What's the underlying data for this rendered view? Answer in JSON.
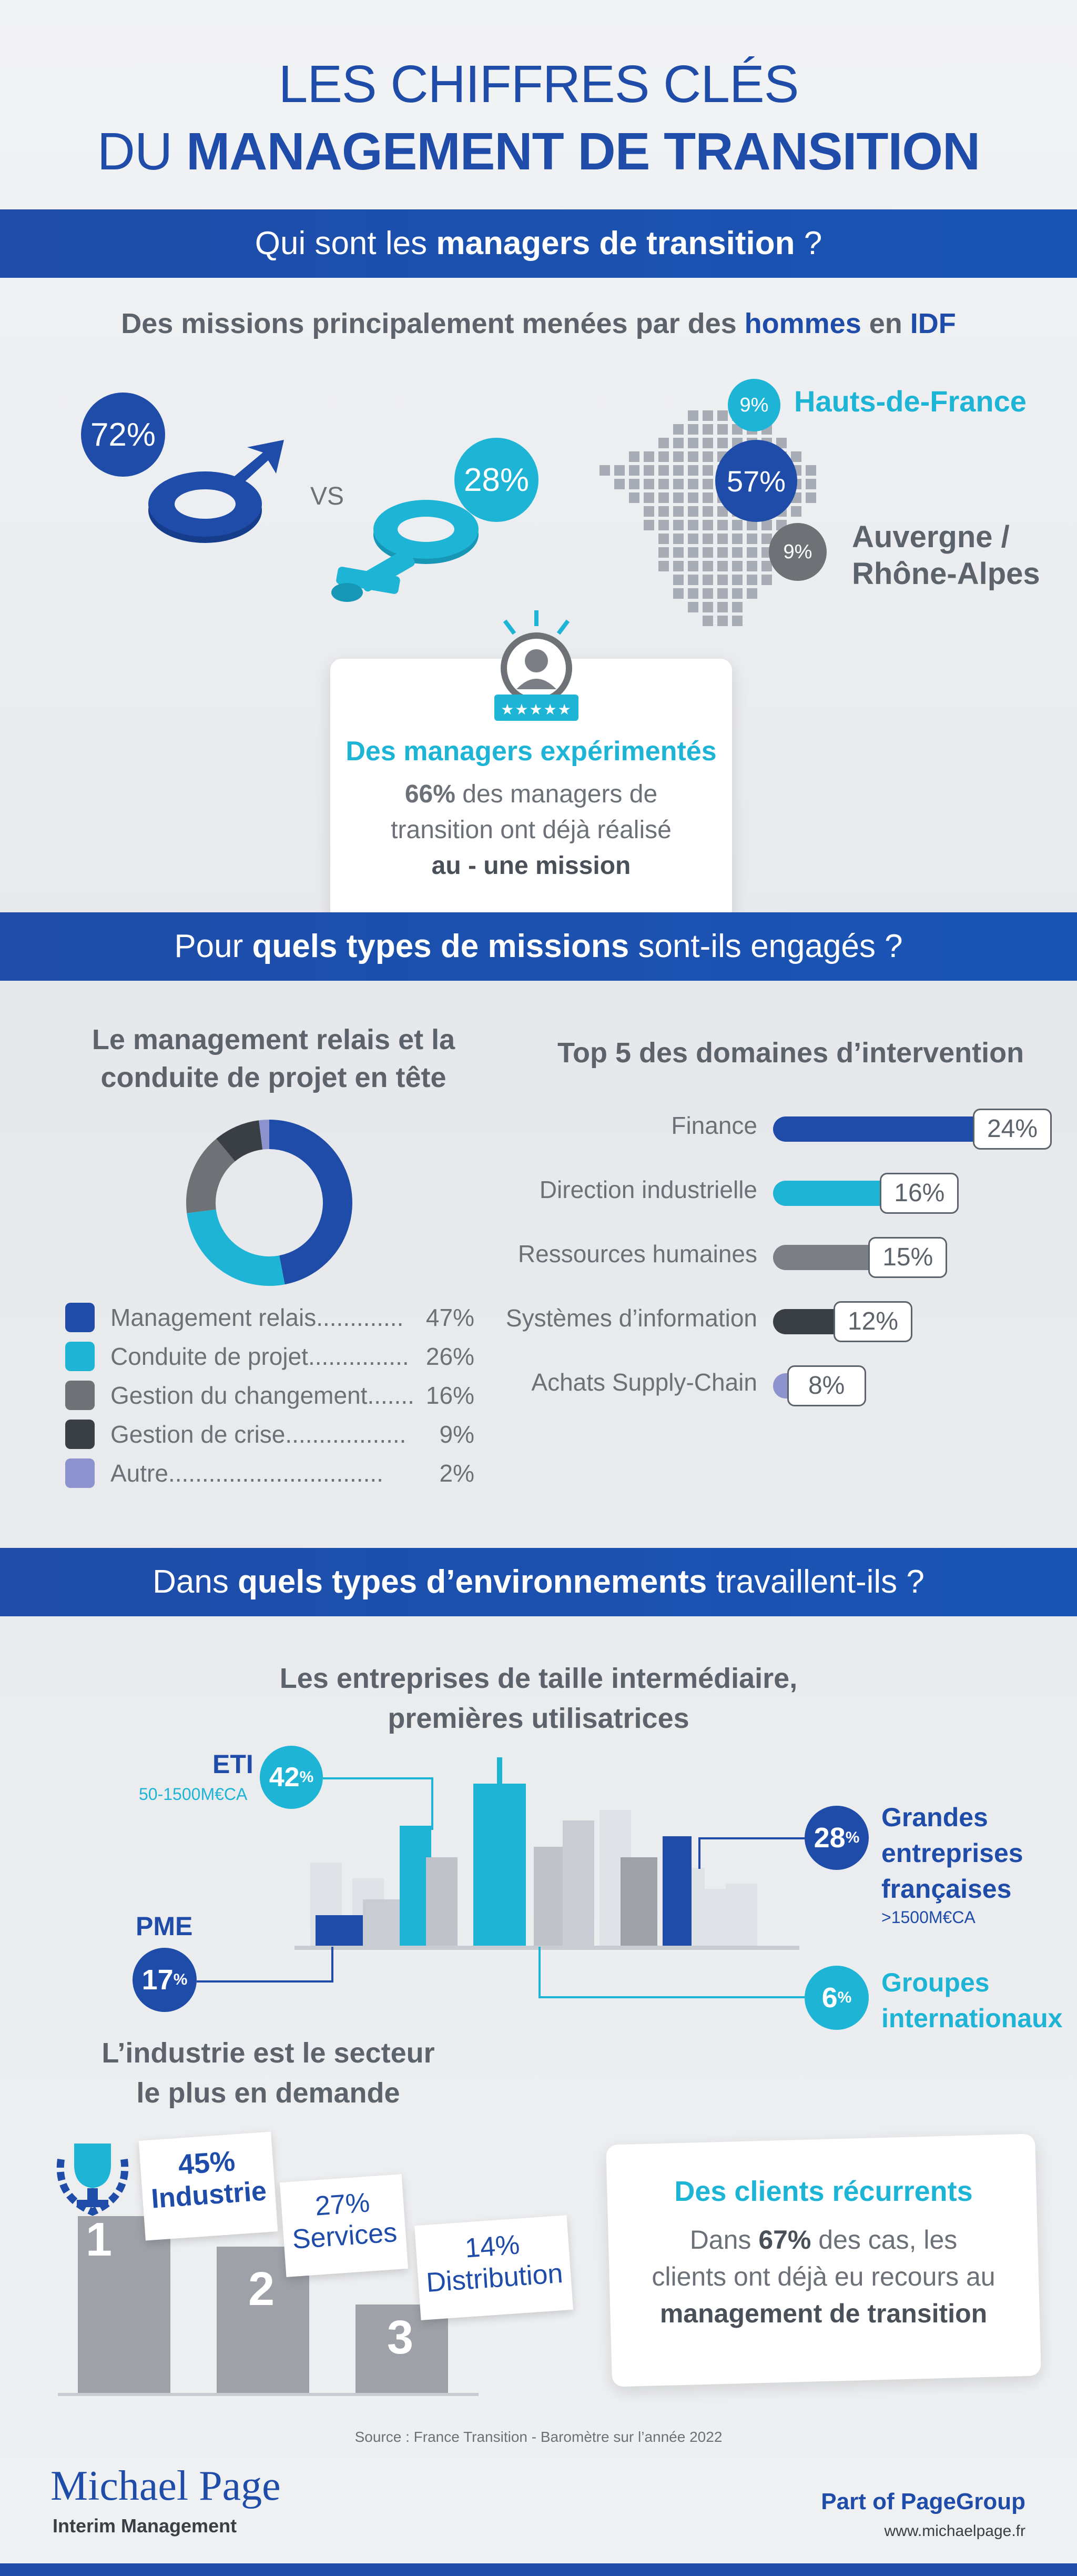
{
  "title": {
    "line1": "LES CHIFFRES CLÉS",
    "line2_prefix": "DU ",
    "line2_bold": "MANAGEMENT DE TRANSITION"
  },
  "section1": {
    "bar_prefix": "Qui sont les ",
    "bar_bold": "managers de transition",
    "bar_suffix": " ?",
    "subtitle_prefix": "Des missions principalement menées par des ",
    "subtitle_b1": "hommes",
    "subtitle_mid": " en ",
    "subtitle_b2": "IDF",
    "men_pct": "72%",
    "vs": "VS",
    "women_pct": "28%",
    "regions": {
      "hdf_pct": "9%",
      "hdf_label": "Hauts-de-France",
      "idf_pct": "57%",
      "ara_pct": "9%",
      "ara_label_1": "Auvergne /",
      "ara_label_2": "Rhône-Alpes"
    },
    "experienced": {
      "title": "Des managers expérimentés",
      "pct": "66%",
      "text1": " des managers de",
      "text2": "transition ont déjà réalisé",
      "text3": "au - une mission",
      "stars": "★★★★★"
    }
  },
  "section2": {
    "bar_prefix": "Pour ",
    "bar_bold": "quels types de missions",
    "bar_suffix": " sont-ils engagés ?",
    "left_title_1": "Le management relais et la",
    "left_title_2": "conduite de projet en tête",
    "legend": [
      {
        "label": "Management relais",
        "dots": " ............. ",
        "pct": "47%",
        "color": "#1e4ca8"
      },
      {
        "label": "Conduite de projet",
        "dots": " ............... ",
        "pct": "26%",
        "color": "#1eb4d6"
      },
      {
        "label": "Gestion du changement",
        "dots": " ....... ",
        "pct": "16%",
        "color": "#6e7277"
      },
      {
        "label": "Gestion de crise",
        "dots": " .................. ",
        "pct": "9%",
        "color": "#3a3f45"
      },
      {
        "label": "Autre",
        "dots": "................................",
        "pct": "2%",
        "color": "#8d93cf"
      }
    ],
    "right_title": "Top 5 des domaines d’intervention",
    "domains": [
      {
        "label": "Finance",
        "pct": "24%",
        "value": 24,
        "color": "#1e4ca8"
      },
      {
        "label": "Direction industrielle",
        "pct": "16%",
        "value": 16,
        "color": "#1eb4d6"
      },
      {
        "label": "Ressources humaines",
        "pct": "15%",
        "value": 15,
        "color": "#7b7f85"
      },
      {
        "label": "Systèmes d’information",
        "pct": "12%",
        "value": 12,
        "color": "#3a3f45"
      },
      {
        "label": "Achats Supply-Chain",
        "pct": "8%",
        "value": 8,
        "color": "#8d93cf"
      }
    ]
  },
  "section3": {
    "bar_prefix": "Dans ",
    "bar_bold": "quels types d’environnements",
    "bar_suffix": " travaillent-ils ?",
    "subtitle_1": "Les entreprises de taille intermédiaire,",
    "subtitle_2": "premières utilisatrices",
    "eti_label": "ETI",
    "eti_sub": "50-1500M€CA",
    "eti_pct": "42",
    "pme_label": "PME",
    "pme_pct": "17",
    "grandes_pct": "28",
    "grandes_l1": "Grandes",
    "grandes_l2": "entreprises",
    "grandes_l3": "françaises",
    "grandes_sub": ">1500M€CA",
    "groupes_pct": "6",
    "groupes_l1": "Groupes",
    "groupes_l2": "internationaux",
    "pct_sign": "%",
    "industry_title_1": "L’industrie est le secteur",
    "industry_title_2": "le plus en demande",
    "podium": [
      {
        "rank": "1",
        "pct": "45%",
        "label": "Industrie"
      },
      {
        "rank": "2",
        "pct": "27%",
        "label": "Services"
      },
      {
        "rank": "3",
        "pct": "14%",
        "label": "Distribution"
      }
    ],
    "recurrent": {
      "title": "Des clients récurrents",
      "l1_prefix": "Dans ",
      "l1_bold": "67%",
      "l1_suffix": " des cas, les",
      "l2": "clients ont déjà eu recours au",
      "l3": "management de transition"
    }
  },
  "footer": {
    "source": "Source : France Transition - Baromètre sur l’année 2022",
    "brand": "Michael Page",
    "brand_sub": "Interim Management",
    "group_prefix": "Part of ",
    "group_bold": "PageGroup",
    "url": "www.michaelpage.fr"
  },
  "chart_data": {
    "type": "pie",
    "categories": [
      "Management relais",
      "Conduite de projet",
      "Gestion du changement",
      "Gestion de crise",
      "Autre"
    ],
    "values": [
      47,
      26,
      16,
      9,
      2
    ],
    "colors": [
      "#1e4ca8",
      "#1eb4d6",
      "#6e7277",
      "#3a3f45",
      "#8d93cf"
    ],
    "title": "Le management relais et la conduite de projet en tête"
  }
}
